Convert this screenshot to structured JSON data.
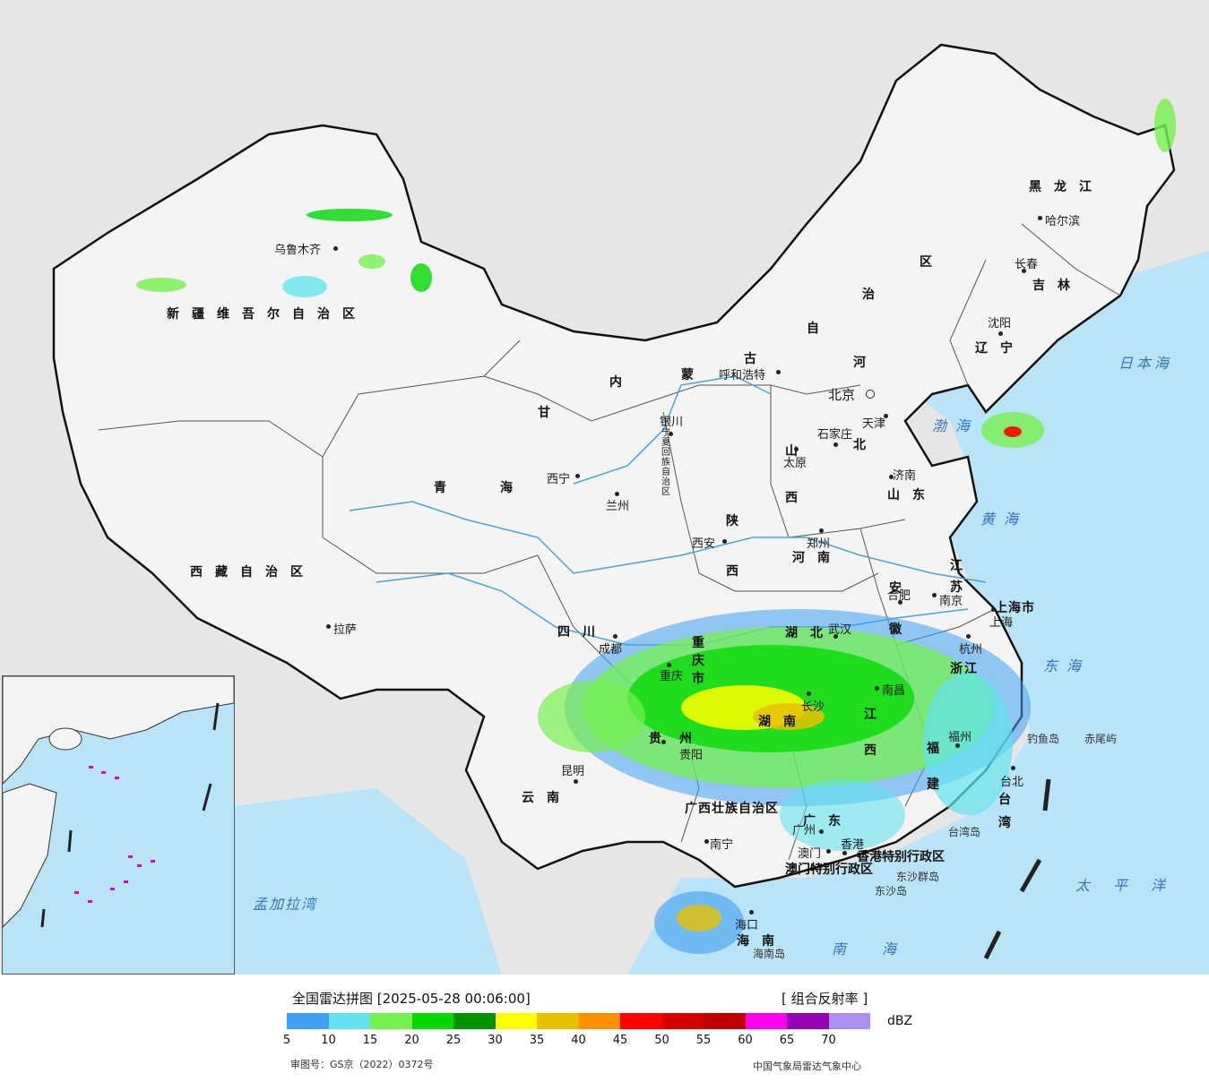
{
  "map": {
    "provinces": [
      {
        "id": "xinjiang",
        "text": "新疆维吾尔自治区"
      },
      {
        "id": "xizang",
        "text": "西藏自治区"
      },
      {
        "id": "qinghai-1",
        "text": "青"
      },
      {
        "id": "qinghai-2",
        "text": "海"
      },
      {
        "id": "gansu",
        "text": "甘"
      },
      {
        "id": "sichuan",
        "text": "四川"
      },
      {
        "id": "yunnan",
        "text": "云南"
      },
      {
        "id": "guangxi",
        "text": "广西壮族自治区"
      },
      {
        "id": "guangdong",
        "text": "广东"
      },
      {
        "id": "hunan",
        "text": "湖南"
      },
      {
        "id": "hubei",
        "text": "湖北"
      },
      {
        "id": "jiangxi",
        "text": "江西"
      },
      {
        "id": "fujian",
        "text": "福建"
      },
      {
        "id": "zhejiang",
        "text": "浙江"
      },
      {
        "id": "jiangsu",
        "text": "江苏"
      },
      {
        "id": "anhui",
        "text": "安徽"
      },
      {
        "id": "henan",
        "text": "河南"
      },
      {
        "id": "shandong",
        "text": "山东"
      },
      {
        "id": "shanxi",
        "text": "山西"
      },
      {
        "id": "shaanxi",
        "text": "陕西"
      },
      {
        "id": "hebei",
        "text": "北"
      },
      {
        "id": "hebei-he",
        "text": "河"
      },
      {
        "id": "liaoning",
        "text": "辽宁"
      },
      {
        "id": "jilin",
        "text": "吉林"
      },
      {
        "id": "heilongjiang",
        "text": "黑龙江"
      },
      {
        "id": "neimenggu-1",
        "text": "内"
      },
      {
        "id": "neimenggu-2",
        "text": "蒙"
      },
      {
        "id": "neimenggu-3",
        "text": "古"
      },
      {
        "id": "neimenggu-4",
        "text": "自"
      },
      {
        "id": "neimenggu-5",
        "text": "治"
      },
      {
        "id": "neimenggu-6",
        "text": "区"
      },
      {
        "id": "hainan",
        "text": "海南"
      },
      {
        "id": "taiwan",
        "text": "台湾"
      },
      {
        "id": "guizhou",
        "text": "贵州"
      },
      {
        "id": "chongqing",
        "text": "重庆市"
      },
      {
        "id": "shanghai",
        "text": "上海市"
      },
      {
        "id": "hongkong",
        "text": "香港特别行政区"
      },
      {
        "id": "macau",
        "text": "澳门特别行政区"
      },
      {
        "id": "ningxia",
        "text": "宁夏回族自治区"
      }
    ],
    "cities": [
      {
        "id": "urumqi",
        "text": "乌鲁木齐"
      },
      {
        "id": "lhasa",
        "text": "拉萨"
      },
      {
        "id": "xining",
        "text": "西宁"
      },
      {
        "id": "lanzhou",
        "text": "兰州"
      },
      {
        "id": "yinchuan",
        "text": "银川"
      },
      {
        "id": "hohhot",
        "text": "呼和浩特"
      },
      {
        "id": "beijing",
        "text": "北京"
      },
      {
        "id": "tianjin",
        "text": "天津"
      },
      {
        "id": "shijiazhuang",
        "text": "石家庄"
      },
      {
        "id": "taiyuan",
        "text": "太原"
      },
      {
        "id": "xian",
        "text": "西安"
      },
      {
        "id": "zhengzhou",
        "text": "郑州"
      },
      {
        "id": "jinan",
        "text": "济南"
      },
      {
        "id": "shenyang",
        "text": "沈阳"
      },
      {
        "id": "changchun",
        "text": "长春"
      },
      {
        "id": "harbin",
        "text": "哈尔滨"
      },
      {
        "id": "chengdu",
        "text": "成都"
      },
      {
        "id": "chongqing-c",
        "text": "重庆"
      },
      {
        "id": "guiyang",
        "text": "贵阳"
      },
      {
        "id": "kunming",
        "text": "昆明"
      },
      {
        "id": "nanning",
        "text": "南宁"
      },
      {
        "id": "guangzhou",
        "text": "广州"
      },
      {
        "id": "wuhan",
        "text": "武汉"
      },
      {
        "id": "changsha",
        "text": "长沙"
      },
      {
        "id": "nanchang",
        "text": "南昌"
      },
      {
        "id": "hefei",
        "text": "合肥"
      },
      {
        "id": "nanjing",
        "text": "南京"
      },
      {
        "id": "hangzhou",
        "text": "杭州"
      },
      {
        "id": "fuzhou",
        "text": "福州"
      },
      {
        "id": "taibei",
        "text": "台北"
      },
      {
        "id": "shanghai-c",
        "text": "上海"
      },
      {
        "id": "haikou",
        "text": "海口"
      },
      {
        "id": "aomen",
        "text": "澳门"
      },
      {
        "id": "xianggang",
        "text": "香港"
      }
    ],
    "seas": [
      {
        "id": "bohai",
        "text": "渤海"
      },
      {
        "id": "huanghai",
        "text": "黄海"
      },
      {
        "id": "donghai",
        "text": "东海"
      },
      {
        "id": "nanhai",
        "text": "南海"
      },
      {
        "id": "taipingyang",
        "text": "太平洋"
      },
      {
        "id": "ribenhai",
        "text": "日本海"
      },
      {
        "id": "mengjialawan",
        "text": "孟加拉湾"
      }
    ],
    "islands": [
      {
        "id": "diaoyudao",
        "text": "钓鱼岛"
      },
      {
        "id": "chiweiyu",
        "text": "赤尾屿"
      },
      {
        "id": "taiwandao",
        "text": "台湾岛"
      },
      {
        "id": "dongshaqundao",
        "text": "东沙群岛"
      },
      {
        "id": "dongshadao",
        "text": "东沙岛"
      },
      {
        "id": "hainandao",
        "text": "海南岛"
      }
    ],
    "colors": {
      "land": "#f2f2f2",
      "sea": "#b9e3f7",
      "outside": "#e6e6e6",
      "border": "#111111",
      "river": "#4aa3d8"
    }
  },
  "legend": {
    "title": "全国雷达拼图 [2025-05-28 00:06:00]",
    "product": "[ 组合反射率 ]",
    "unit": "dBZ",
    "approval": "审图号：GS京（2022）0372号",
    "source": "中国气象局雷达气象中心",
    "ticks": [
      "5",
      "10",
      "15",
      "20",
      "25",
      "30",
      "35",
      "40",
      "45",
      "50",
      "55",
      "60",
      "65",
      "70"
    ],
    "colors": [
      "#3f9ff0",
      "#63e3ed",
      "#76f04f",
      "#00d800",
      "#009200",
      "#ffff00",
      "#e7c000",
      "#ff9000",
      "#ff0000",
      "#d60000",
      "#c00000",
      "#ff00f0",
      "#9600b4",
      "#ad90f0"
    ]
  }
}
